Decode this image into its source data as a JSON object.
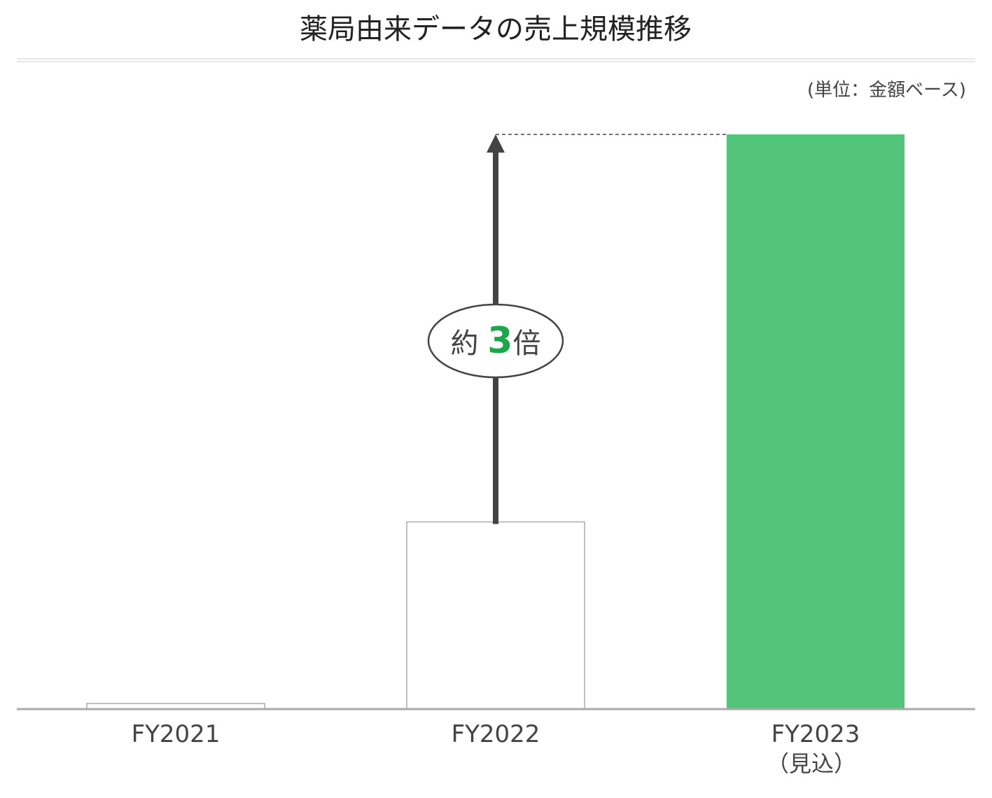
{
  "chart_data": {
    "type": "bar",
    "title": "薬局由来データの売上規模推移",
    "unit_note": "(単位：金額ベース)",
    "categories": [
      "FY2021",
      "FY2022",
      "FY2023"
    ],
    "category_sublabels": [
      "",
      "",
      "（見込）"
    ],
    "values": [
      0.03,
      1.0,
      3.07
    ],
    "value_scale": "relative to FY2022 (no axis values printed)",
    "bar_colors": [
      "#ffffff",
      "#ffffff",
      "#53c57a"
    ],
    "bar_stroke": "#aaaaaa",
    "grid": false,
    "annotation": {
      "prefix": "約",
      "number": "3",
      "suffix": "倍",
      "number_color": "#1aa84a",
      "from": "FY2022",
      "to": "FY2023"
    }
  }
}
